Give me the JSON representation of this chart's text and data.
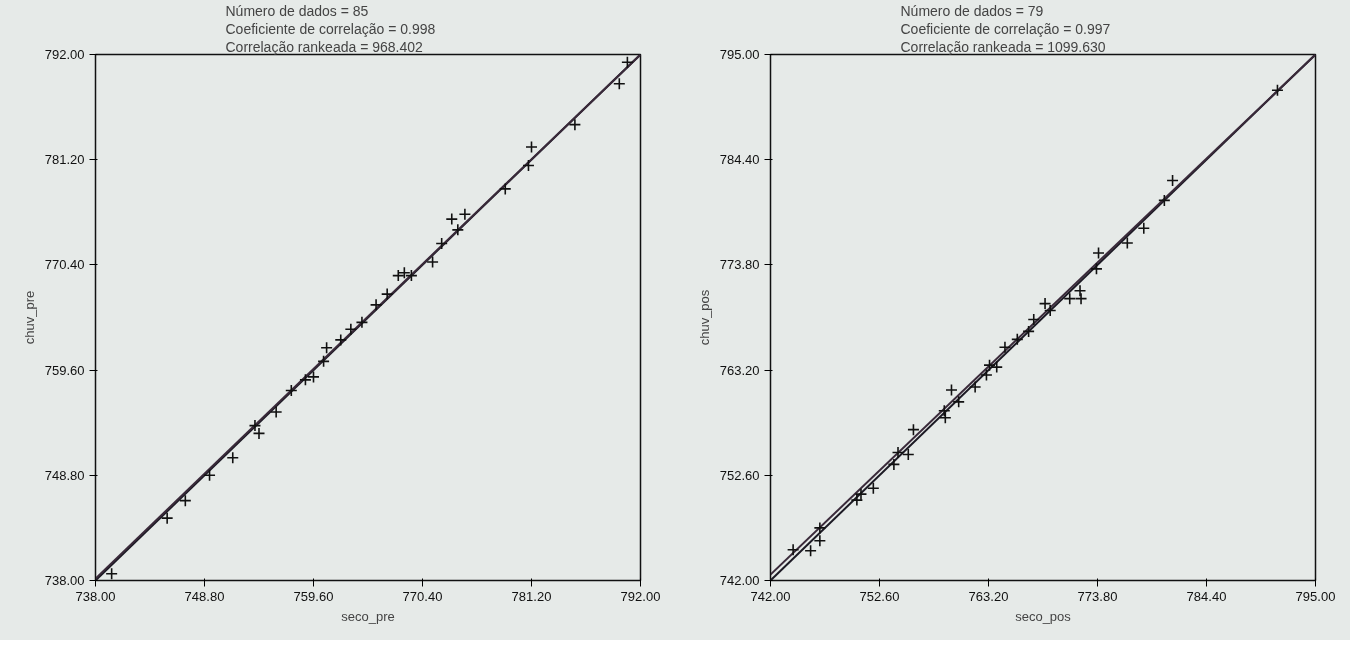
{
  "chart_data": [
    {
      "type": "scatter",
      "annotations": [
        "Número de dados = 85",
        "Coeficiente de correlação = 0.998",
        "Correlação rankeada = 968.402"
      ],
      "xlabel": "seco_pre",
      "ylabel": "chuv_pre",
      "xlim": [
        738,
        792
      ],
      "ylim": [
        738,
        792
      ],
      "xticks": [
        {
          "value": 738,
          "label": "738.00"
        },
        {
          "value": 748.8,
          "label": "748.80"
        },
        {
          "value": 759.6,
          "label": "759.60"
        },
        {
          "value": 770.4,
          "label": "770.40"
        },
        {
          "value": 781.2,
          "label": "781.20"
        },
        {
          "value": 792,
          "label": "792.00"
        }
      ],
      "yticks": [
        {
          "value": 738,
          "label": "738.00"
        },
        {
          "value": 748.8,
          "label": "748.80"
        },
        {
          "value": 759.6,
          "label": "759.60"
        },
        {
          "value": 770.4,
          "label": "770.40"
        },
        {
          "value": 781.2,
          "label": "781.20"
        },
        {
          "value": 792,
          "label": "792.00"
        }
      ],
      "grid": false,
      "series": [
        {
          "type": "line",
          "color": "#1c1a24",
          "x": [
            738,
            792
          ],
          "values": [
            738,
            792
          ]
        },
        {
          "type": "line",
          "color": "#3a2a3a",
          "x": [
            738,
            792
          ],
          "values": [
            738.2,
            792
          ]
        },
        {
          "marker": "cross",
          "color": "#111111",
          "x": [
            739.6,
            745.1,
            746.9,
            749.3,
            751.6,
            753.8,
            754.2,
            755.9,
            757.4,
            758.8,
            759.6,
            760.6,
            760.9,
            762.3,
            763.3,
            764.4,
            765.8,
            766.9,
            768.0,
            769.3,
            768.6,
            771.4,
            772.3,
            773.3,
            774.6,
            773.9,
            778.6,
            780.9,
            781.2,
            785.5,
            789.9,
            790.7
          ],
          "values": [
            738.7,
            744.4,
            746.2,
            748.8,
            750.6,
            753.9,
            753.1,
            755.3,
            757.5,
            758.6,
            758.9,
            760.5,
            761.9,
            762.7,
            763.8,
            764.5,
            766.3,
            767.4,
            769.3,
            769.3,
            769.6,
            770.7,
            772.6,
            775.1,
            775.6,
            774.0,
            778.2,
            780.6,
            782.5,
            784.8,
            789.0,
            791.2
          ]
        }
      ]
    },
    {
      "type": "scatter",
      "annotations": [
        "Número de dados = 79",
        "Coeficiente de correlação = 0.997",
        "Correlação rankeada = 1099.630"
      ],
      "xlabel": "seco_pos",
      "ylabel": "chuv_pos",
      "xlim": [
        742,
        795
      ],
      "ylim": [
        742,
        795
      ],
      "xticks": [
        {
          "value": 742,
          "label": "742.00"
        },
        {
          "value": 752.6,
          "label": "752.60"
        },
        {
          "value": 763.2,
          "label": "763.20"
        },
        {
          "value": 773.8,
          "label": "773.80"
        },
        {
          "value": 784.4,
          "label": "784.40"
        },
        {
          "value": 795,
          "label": "795.00"
        }
      ],
      "yticks": [
        {
          "value": 742,
          "label": "742.00"
        },
        {
          "value": 752.6,
          "label": "752.60"
        },
        {
          "value": 763.2,
          "label": "763.20"
        },
        {
          "value": 773.8,
          "label": "773.80"
        },
        {
          "value": 784.4,
          "label": "784.40"
        },
        {
          "value": 795,
          "label": "795.00"
        }
      ],
      "grid": false,
      "series": [
        {
          "type": "line",
          "color": "#1c1a24",
          "x": [
            742,
            795
          ],
          "values": [
            742,
            795
          ]
        },
        {
          "type": "line",
          "color": "#3a2a3a",
          "x": [
            742,
            795
          ],
          "values": [
            742.6,
            795
          ]
        },
        {
          "marker": "cross",
          "color": "#111111",
          "x": [
            744.2,
            745.9,
            746.8,
            746.8,
            750.4,
            750.8,
            752.0,
            754.0,
            754.4,
            755.4,
            755.9,
            758.9,
            759.0,
            759.6,
            760.3,
            761.9,
            763.0,
            763.3,
            764.0,
            764.8,
            766.0,
            767.1,
            767.6,
            768.7,
            769.2,
            771.1,
            772.1,
            772.2,
            773.9,
            773.7,
            776.7,
            778.3,
            780.3,
            781.1,
            791.3
          ],
          "values": [
            745.1,
            745.0,
            747.3,
            746.0,
            750.1,
            750.7,
            751.3,
            753.7,
            754.9,
            754.7,
            757.2,
            759.1,
            758.4,
            761.2,
            760.0,
            761.5,
            762.7,
            763.7,
            763.5,
            765.5,
            766.3,
            767.1,
            768.3,
            769.9,
            769.2,
            770.4,
            771.2,
            770.4,
            775.0,
            773.4,
            776.0,
            777.5,
            780.3,
            782.3,
            791.4
          ]
        }
      ]
    }
  ]
}
